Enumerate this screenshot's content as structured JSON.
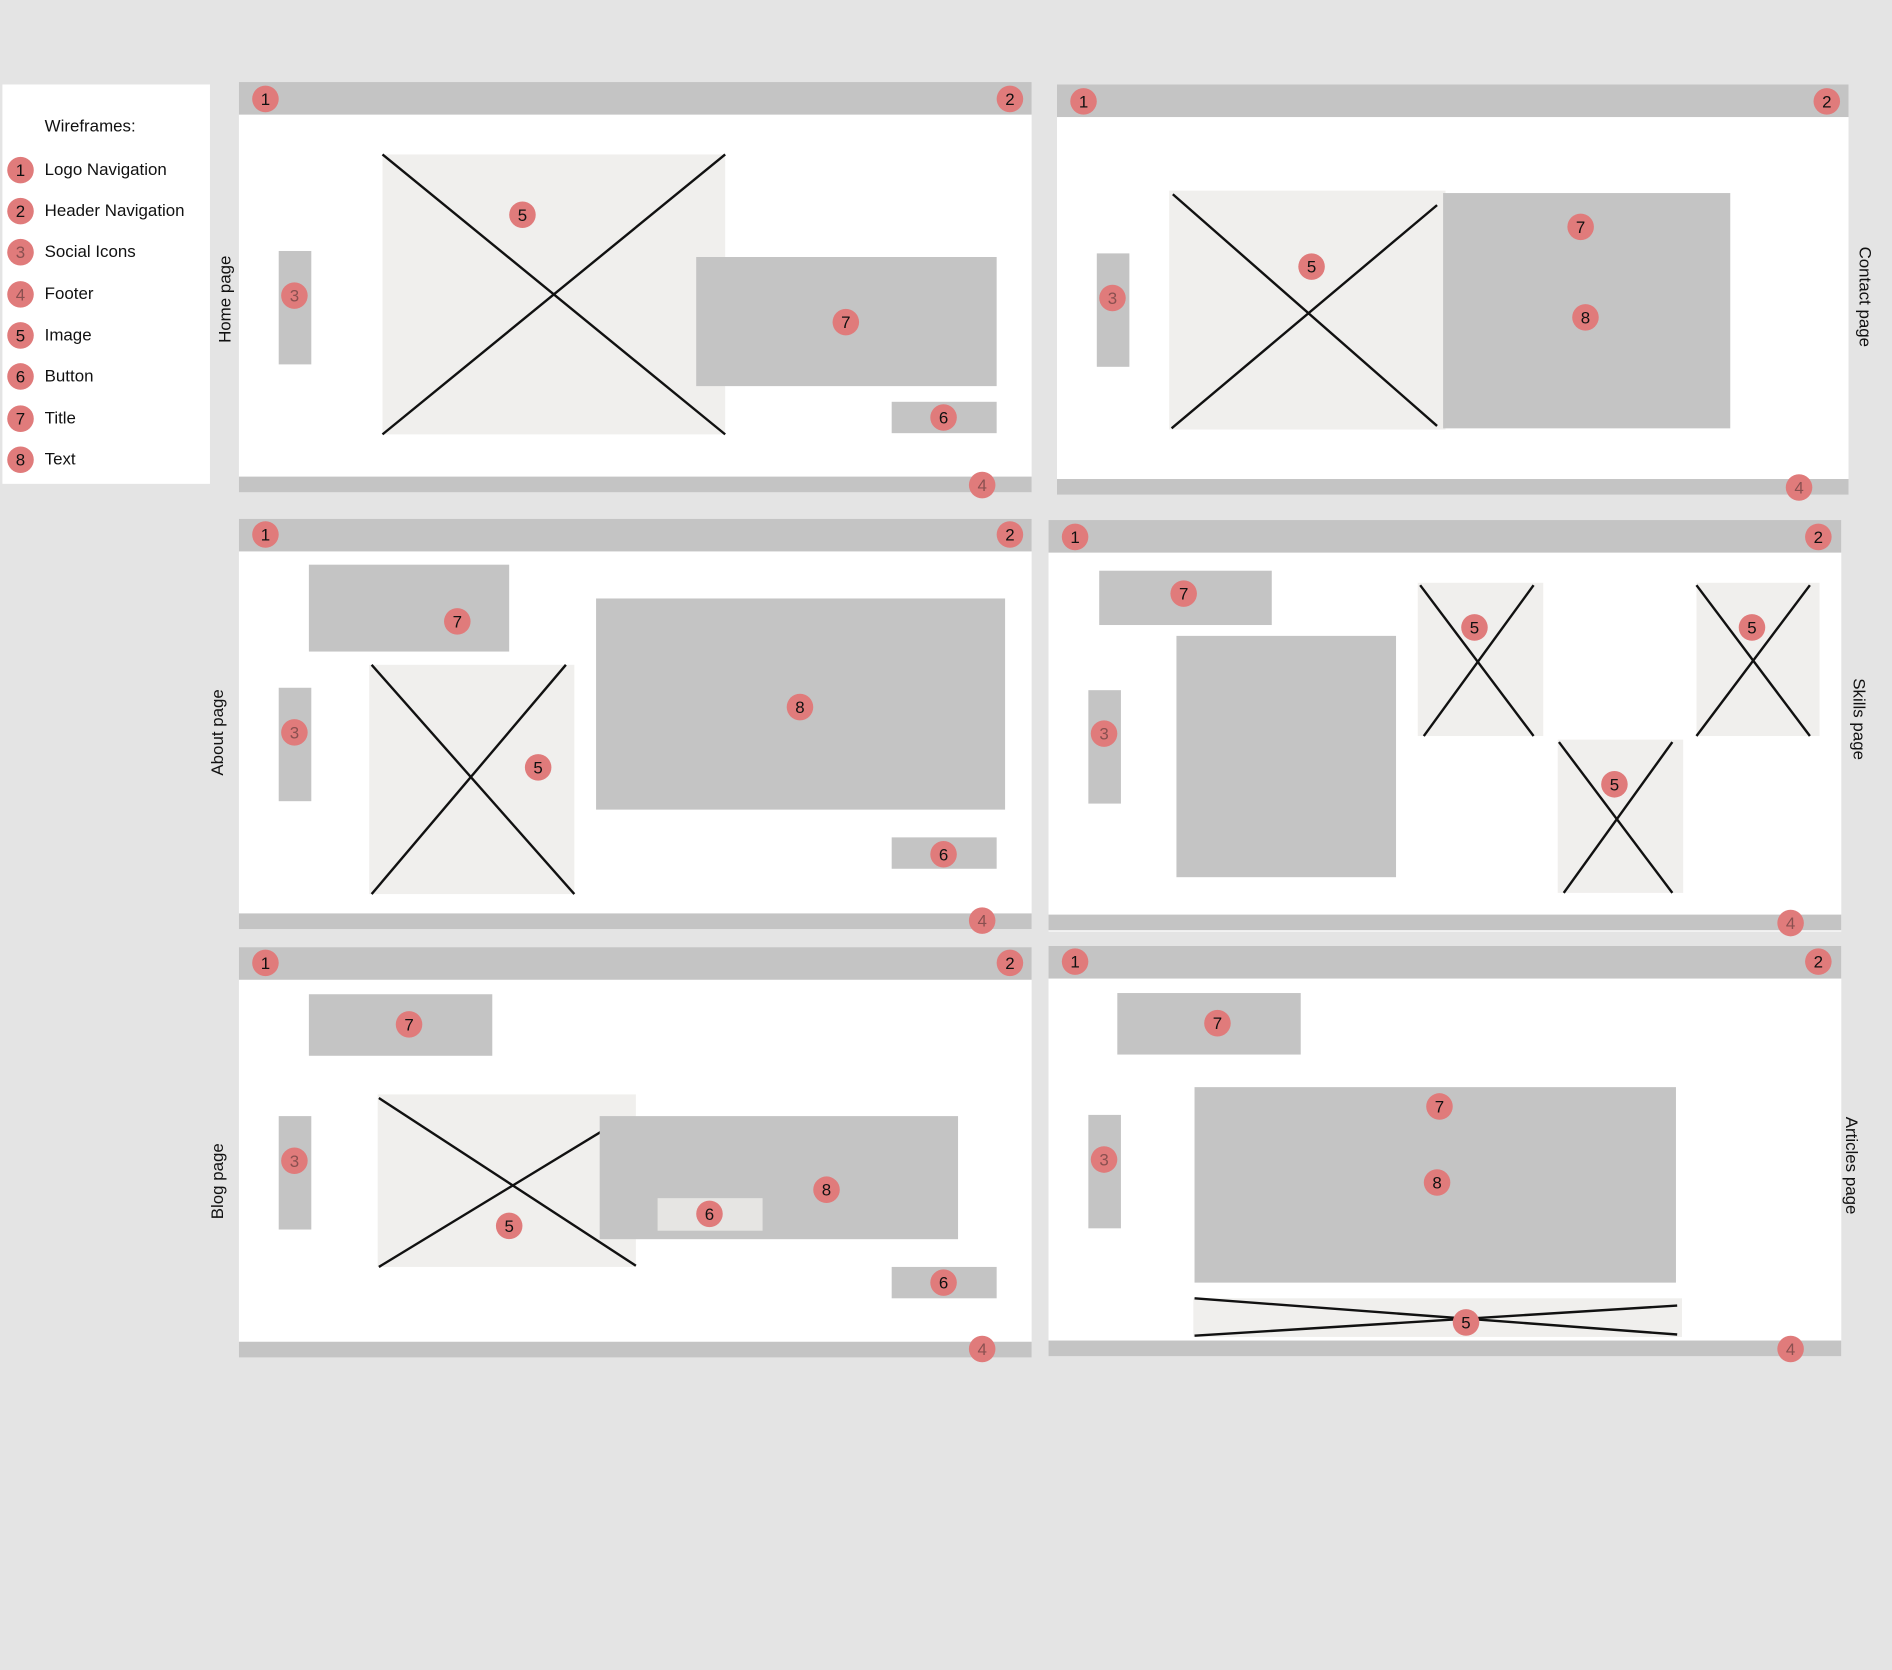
{
  "legend": {
    "title": "Wireframes:",
    "items": [
      {
        "num": "1",
        "label": " Logo Navigation"
      },
      {
        "num": "2",
        "label": "Header Navigation"
      },
      {
        "num": "3",
        "label": "Social Icons"
      },
      {
        "num": "4",
        "label": "Footer"
      },
      {
        "num": "5",
        "label": "Image"
      },
      {
        "num": "6",
        "label": "Button"
      },
      {
        "num": "7",
        "label": "Title"
      },
      {
        "num": "8",
        "label": "Text"
      }
    ]
  },
  "pages": {
    "home": "Home page",
    "contact": "Contact  page",
    "about": "About  page",
    "skills": "Skills  page",
    "blog": "Blog  page",
    "articles": "Articles  page"
  },
  "badge": {
    "n1": "1",
    "n2": "2",
    "n3": "3",
    "n4": "4",
    "n5": "5",
    "n6": "6",
    "n7": "7",
    "n8": "8"
  },
  "colors": {
    "background": "#e4e4e4",
    "panel": "#ffffff",
    "block": "#c4c4c4",
    "image_fill": "#f0efed",
    "badge": "#e07b7b"
  }
}
